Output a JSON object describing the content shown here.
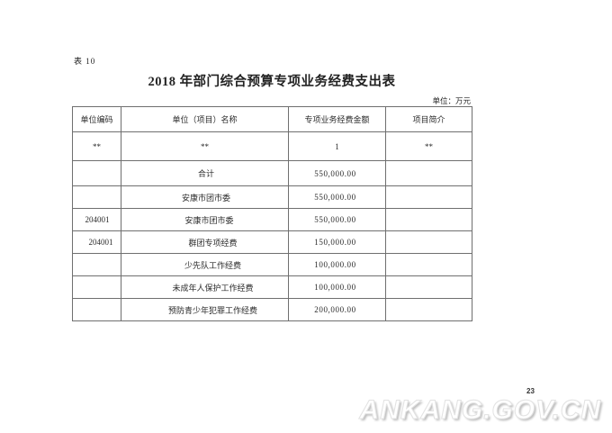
{
  "page": {
    "table_label": "表 10",
    "title": "2018 年部门综合预算专项业务经费支出表",
    "unit_note": "单位：万元",
    "page_number": "23",
    "watermark": "ANKANG.GOV.CN"
  },
  "table": {
    "columns": [
      "单位编码",
      "单位（项目）名称",
      "专项业务经费金额",
      "项目简介"
    ],
    "subheader": [
      "**",
      "**",
      "1",
      "**"
    ],
    "rows": [
      {
        "code": "",
        "name": "合计",
        "amount": "550,000.00",
        "intro": ""
      },
      {
        "code": "",
        "name": "安康市团市委",
        "amount": "550,000.00",
        "intro": ""
      },
      {
        "code": "204001",
        "name": "安康市团市委",
        "amount": "550,000.00",
        "intro": ""
      },
      {
        "code": "204001",
        "name": "群团专项经费",
        "amount": "150,000.00",
        "intro": ""
      },
      {
        "code": "",
        "name": "少先队工作经费",
        "amount": "100,000.00",
        "intro": ""
      },
      {
        "code": "",
        "name": "未成年人保护工作经费",
        "amount": "100,000.00",
        "intro": ""
      },
      {
        "code": "",
        "name": "预防青少年犯罪工作经费",
        "amount": "200,000.00",
        "intro": ""
      }
    ]
  },
  "colors": {
    "background": "#ffffff",
    "text": "#222222",
    "table_border": "#6f6f6f",
    "watermark_shadow": "#bdbdbd"
  }
}
